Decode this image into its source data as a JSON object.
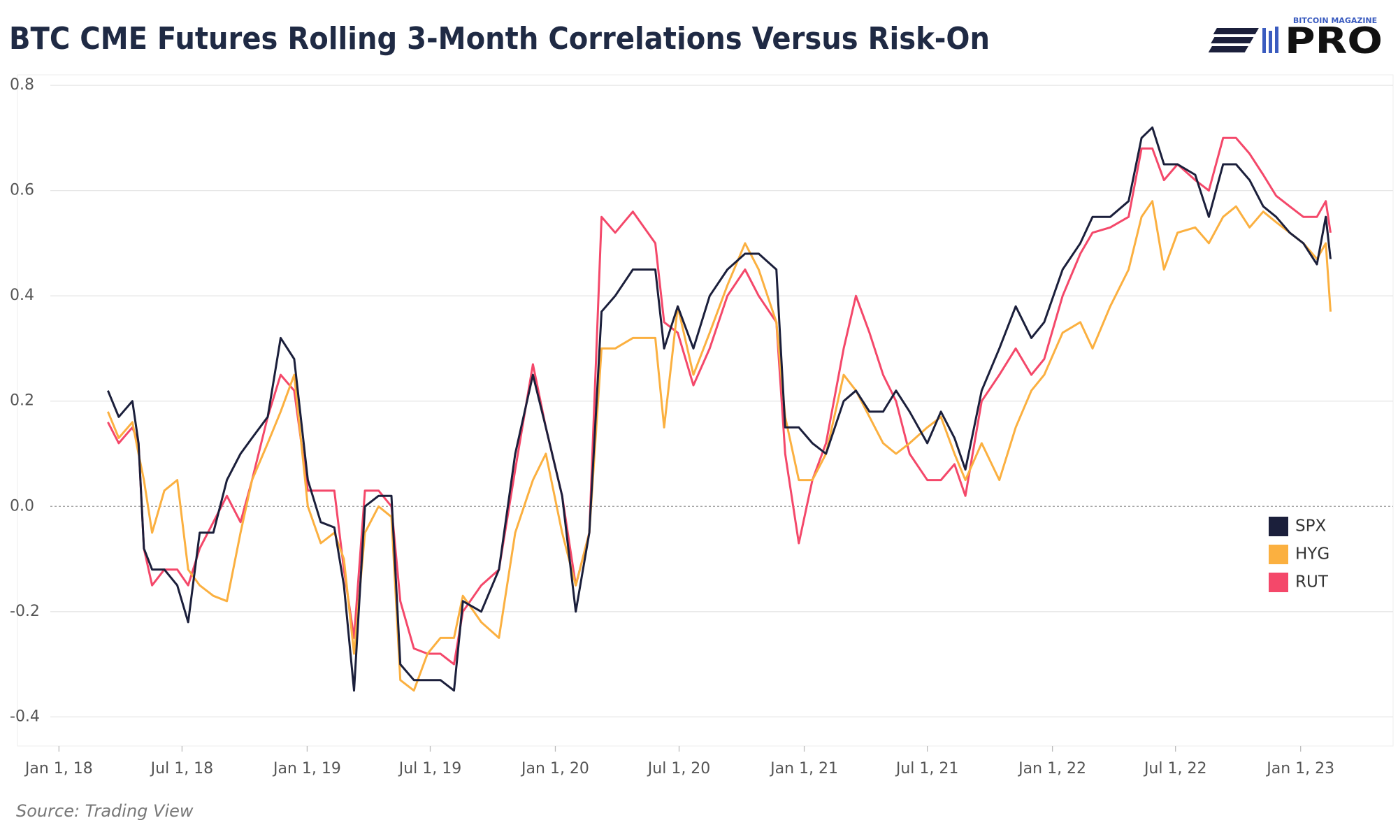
{
  "chart_data": {
    "type": "line",
    "title": "BTC CME Futures Rolling 3-Month Correlations Versus Risk-On",
    "source": "Source: Trading View",
    "logo": {
      "top": "BITCOIN MAGAZINE",
      "main": "PRO"
    },
    "grid": true,
    "legend": "right",
    "xlim": [
      "2017-11-01",
      "2023-05-17"
    ],
    "xticks": [
      {
        "value": "2018-01-01",
        "label": "Jan 1, 18"
      },
      {
        "value": "2018-07-01",
        "label": "Jul 1, 18"
      },
      {
        "value": "2019-01-01",
        "label": "Jan 1, 19"
      },
      {
        "value": "2019-07-01",
        "label": "Jul 1, 19"
      },
      {
        "value": "2020-01-01",
        "label": "Jan 1, 20"
      },
      {
        "value": "2020-07-01",
        "label": "Jul 1, 20"
      },
      {
        "value": "2021-01-01",
        "label": "Jan 1, 21"
      },
      {
        "value": "2021-07-01",
        "label": "Jul 1, 21"
      },
      {
        "value": "2022-01-01",
        "label": "Jan 1, 22"
      },
      {
        "value": "2022-07-01",
        "label": "Jul 1, 22"
      },
      {
        "value": "2023-01-01",
        "label": "Jan 1, 23"
      }
    ],
    "ylim": [
      -0.45,
      0.82
    ],
    "yticks": [
      -0.4,
      -0.2,
      {
        "value": 0,
        "label": "0.0"
      },
      0.2,
      0.4,
      0.6,
      0.8
    ],
    "x": [
      "2018-03-14",
      "2018-03-30",
      "2018-04-19",
      "2018-04-28",
      "2018-05-06",
      "2018-05-18",
      "2018-06-05",
      "2018-06-24",
      "2018-07-10",
      "2018-07-27",
      "2018-08-16",
      "2018-09-05",
      "2018-09-25",
      "2018-10-12",
      "2018-11-04",
      "2018-11-23",
      "2018-12-13",
      "2019-01-02",
      "2019-01-21",
      "2019-02-10",
      "2019-02-24",
      "2019-03-11",
      "2019-03-27",
      "2019-04-16",
      "2019-05-05",
      "2019-05-18",
      "2019-06-07",
      "2019-06-27",
      "2019-07-16",
      "2019-08-05",
      "2019-08-18",
      "2019-09-14",
      "2019-10-10",
      "2019-11-03",
      "2019-11-29",
      "2019-12-18",
      "2020-01-11",
      "2020-01-31",
      "2020-02-20",
      "2020-03-09",
      "2020-03-29",
      "2020-04-24",
      "2020-05-27",
      "2020-06-09",
      "2020-06-29",
      "2020-07-22",
      "2020-08-15",
      "2020-09-10",
      "2020-10-06",
      "2020-10-26",
      "2020-11-21",
      "2020-12-04",
      "2020-12-24",
      "2021-01-13",
      "2021-02-02",
      "2021-02-28",
      "2021-03-18",
      "2021-04-07",
      "2021-04-27",
      "2021-05-16",
      "2021-06-05",
      "2021-07-01",
      "2021-07-21",
      "2021-08-10",
      "2021-08-26",
      "2021-09-19",
      "2021-10-15",
      "2021-11-08",
      "2021-12-01",
      "2021-12-20",
      "2022-01-16",
      "2022-02-11",
      "2022-03-01",
      "2022-03-27",
      "2022-04-23",
      "2022-05-12",
      "2022-05-28",
      "2022-06-14",
      "2022-07-04",
      "2022-07-30",
      "2022-08-19",
      "2022-09-09",
      "2022-09-28",
      "2022-10-18",
      "2022-11-07",
      "2022-11-26",
      "2022-12-16",
      "2023-01-05",
      "2023-01-25",
      "2023-02-07",
      "2023-02-14"
    ],
    "series": [
      {
        "name": "SPX",
        "color": "#1b1f3b",
        "values": [
          0.22,
          0.17,
          0.2,
          0.12,
          -0.08,
          -0.12,
          -0.12,
          -0.15,
          -0.22,
          -0.05,
          -0.05,
          0.05,
          0.1,
          0.13,
          0.17,
          0.32,
          0.28,
          0.05,
          -0.03,
          -0.04,
          -0.15,
          -0.35,
          0.0,
          0.02,
          0.02,
          -0.3,
          -0.33,
          -0.33,
          -0.33,
          -0.35,
          -0.18,
          -0.2,
          -0.12,
          0.1,
          0.25,
          0.15,
          0.02,
          -0.2,
          -0.05,
          0.37,
          0.4,
          0.45,
          0.45,
          0.3,
          0.38,
          0.3,
          0.4,
          0.45,
          0.48,
          0.48,
          0.45,
          0.15,
          0.15,
          0.12,
          0.1,
          0.2,
          0.22,
          0.18,
          0.18,
          0.22,
          0.18,
          0.12,
          0.18,
          0.13,
          0.07,
          0.22,
          0.3,
          0.38,
          0.32,
          0.35,
          0.45,
          0.5,
          0.55,
          0.55,
          0.58,
          0.7,
          0.72,
          0.65,
          0.65,
          0.63,
          0.55,
          0.65,
          0.65,
          0.62,
          0.57,
          0.55,
          0.52,
          0.5,
          0.46,
          0.55,
          0.47
        ]
      },
      {
        "name": "HYG",
        "color": "#fbb040",
        "values": [
          0.18,
          0.13,
          0.16,
          0.1,
          0.05,
          -0.05,
          0.03,
          0.05,
          -0.12,
          -0.15,
          -0.17,
          -0.18,
          -0.05,
          0.05,
          0.12,
          0.18,
          0.25,
          0.0,
          -0.07,
          -0.05,
          -0.1,
          -0.28,
          -0.05,
          0.0,
          -0.02,
          -0.33,
          -0.35,
          -0.28,
          -0.25,
          -0.25,
          -0.17,
          -0.22,
          -0.25,
          -0.05,
          0.05,
          0.1,
          -0.05,
          -0.15,
          -0.05,
          0.3,
          0.3,
          0.32,
          0.32,
          0.15,
          0.38,
          0.25,
          0.33,
          0.42,
          0.5,
          0.45,
          0.35,
          0.17,
          0.05,
          0.05,
          0.1,
          0.25,
          0.22,
          0.17,
          0.12,
          0.1,
          0.12,
          0.15,
          0.17,
          0.1,
          0.05,
          0.12,
          0.05,
          0.15,
          0.22,
          0.25,
          0.33,
          0.35,
          0.3,
          0.38,
          0.45,
          0.55,
          0.58,
          0.45,
          0.52,
          0.53,
          0.5,
          0.55,
          0.57,
          0.53,
          0.56,
          0.54,
          0.52,
          0.5,
          0.47,
          0.5,
          0.37
        ]
      },
      {
        "name": "RUT",
        "color": "#f4486a",
        "values": [
          0.16,
          0.12,
          0.15,
          0.12,
          -0.08,
          -0.15,
          -0.12,
          -0.12,
          -0.15,
          -0.08,
          -0.03,
          0.02,
          -0.03,
          0.05,
          0.17,
          0.25,
          0.22,
          0.03,
          0.03,
          0.03,
          -0.12,
          -0.25,
          0.03,
          0.03,
          0.0,
          -0.18,
          -0.27,
          -0.28,
          -0.28,
          -0.3,
          -0.2,
          -0.15,
          -0.12,
          0.07,
          0.27,
          0.15,
          0.02,
          -0.15,
          -0.05,
          0.55,
          0.52,
          0.56,
          0.5,
          0.35,
          0.33,
          0.23,
          0.3,
          0.4,
          0.45,
          0.4,
          0.35,
          0.1,
          -0.07,
          0.05,
          0.12,
          0.3,
          0.4,
          0.33,
          0.25,
          0.2,
          0.1,
          0.05,
          0.05,
          0.08,
          0.02,
          0.2,
          0.25,
          0.3,
          0.25,
          0.28,
          0.4,
          0.48,
          0.52,
          0.53,
          0.55,
          0.68,
          0.68,
          0.62,
          0.65,
          0.62,
          0.6,
          0.7,
          0.7,
          0.67,
          0.63,
          0.59,
          0.57,
          0.55,
          0.55,
          0.58,
          0.52
        ]
      }
    ]
  }
}
